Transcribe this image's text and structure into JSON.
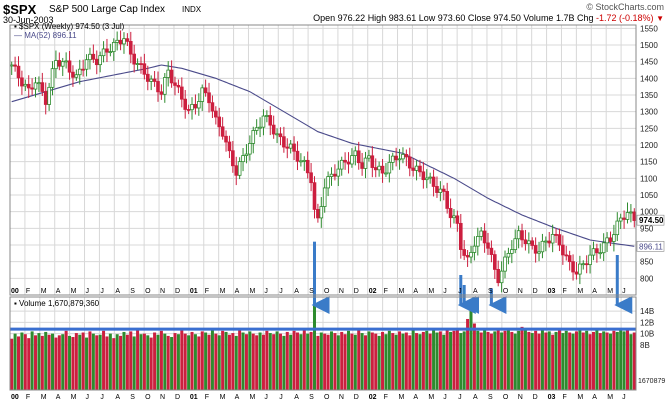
{
  "header": {
    "symbol": "$SPX",
    "description": "S&P 500 Large Cap Index",
    "exchange": "INDX",
    "date": "30-Jun-2003",
    "credit": "© StockCharts.com",
    "quote": {
      "open_label": "Open",
      "open": "976.22",
      "high_label": "High",
      "high": "983.61",
      "low_label": "Low",
      "low": "973.60",
      "close_label": "Close",
      "close": "974.50",
      "volume_label": "Volume",
      "volume": "1.7B",
      "chg_label": "Chg",
      "chg": "-1.72 (-0.18%)"
    }
  },
  "colors": {
    "up": "#2e8b2e",
    "down": "#cc1f3f",
    "ma": "#4a4a8a",
    "arrow": "#3a7bc8",
    "hline": "#3a6fd0",
    "grid": "#d8d8d8"
  },
  "chart_data": [
    {
      "type": "candlestick",
      "legend": [
        "$SPX (Weekly) 974.50 (3 Jul)",
        "MA(52) 896.11"
      ],
      "last_price_label": "974.50",
      "ma_value_label": "896.11",
      "ylim": [
        750,
        1560
      ],
      "y_ticks": [
        800,
        850,
        900,
        950,
        1000,
        1050,
        1100,
        1150,
        1200,
        1250,
        1300,
        1350,
        1400,
        1450,
        1500,
        1550
      ],
      "x_tick_labels": [
        "00",
        "F",
        "M",
        "A",
        "M",
        "J",
        "J",
        "A",
        "S",
        "O",
        "N",
        "D",
        "01",
        "F",
        "M",
        "A",
        "M",
        "J",
        "J",
        "A",
        "S",
        "O",
        "N",
        "D",
        "02",
        "F",
        "M",
        "A",
        "M",
        "J",
        "J",
        "A",
        "S",
        "O",
        "N",
        "D",
        "03",
        "F",
        "M",
        "A",
        "M",
        "J"
      ],
      "bold_x_ticks": [
        "00",
        "01",
        "02",
        "03"
      ],
      "close_path": [
        [
          0,
          1440
        ],
        [
          2,
          1405
        ],
        [
          5,
          1360
        ],
        [
          7,
          1395
        ],
        [
          10,
          1335
        ],
        [
          13,
          1455
        ],
        [
          16,
          1440
        ],
        [
          19,
          1400
        ],
        [
          22,
          1460
        ],
        [
          25,
          1455
        ],
        [
          28,
          1485
        ],
        [
          31,
          1505
        ],
        [
          33,
          1525
        ],
        [
          35,
          1470
        ],
        [
          38,
          1430
        ],
        [
          41,
          1390
        ],
        [
          44,
          1360
        ],
        [
          46,
          1420
        ],
        [
          48,
          1380
        ],
        [
          50,
          1340
        ],
        [
          52,
          1300
        ],
        [
          54,
          1320
        ],
        [
          56,
          1360
        ],
        [
          58,
          1340
        ],
        [
          60,
          1270
        ],
        [
          62,
          1240
        ],
        [
          64,
          1170
        ],
        [
          66,
          1120
        ],
        [
          68,
          1160
        ],
        [
          70,
          1210
        ],
        [
          72,
          1250
        ],
        [
          74,
          1285
        ],
        [
          76,
          1265
        ],
        [
          78,
          1225
        ],
        [
          80,
          1205
        ],
        [
          82,
          1190
        ],
        [
          84,
          1165
        ],
        [
          86,
          1140
        ],
        [
          88,
          1100
        ],
        [
          89,
          1000
        ],
        [
          90,
          970
        ],
        [
          92,
          1080
        ],
        [
          95,
          1120
        ],
        [
          98,
          1150
        ],
        [
          101,
          1170
        ],
        [
          103,
          1140
        ],
        [
          105,
          1160
        ],
        [
          107,
          1130
        ],
        [
          109,
          1115
        ],
        [
          111,
          1145
        ],
        [
          114,
          1170
        ],
        [
          116,
          1155
        ],
        [
          118,
          1130
        ],
        [
          121,
          1110
        ],
        [
          124,
          1080
        ],
        [
          127,
          1050
        ],
        [
          129,
          990
        ],
        [
          131,
          960
        ],
        [
          132,
          900
        ],
        [
          133,
          870
        ],
        [
          134,
          850
        ],
        [
          136,
          910
        ],
        [
          138,
          930
        ],
        [
          140,
          900
        ],
        [
          141,
          860
        ],
        [
          142,
          820
        ],
        [
          143,
          800
        ],
        [
          145,
          850
        ],
        [
          147,
          900
        ],
        [
          149,
          930
        ],
        [
          151,
          915
        ],
        [
          153,
          890
        ],
        [
          155,
          885
        ],
        [
          157,
          910
        ],
        [
          159,
          930
        ],
        [
          161,
          905
        ],
        [
          163,
          860
        ],
        [
          164,
          840
        ],
        [
          166,
          820
        ],
        [
          168,
          840
        ],
        [
          170,
          870
        ],
        [
          172,
          880
        ],
        [
          174,
          900
        ],
        [
          176,
          920
        ],
        [
          178,
          960
        ],
        [
          180,
          990
        ],
        [
          181,
          1000
        ],
        [
          182,
          985
        ],
        [
          183,
          974.5
        ]
      ],
      "ma52_path": [
        [
          0,
          1330
        ],
        [
          10,
          1360
        ],
        [
          20,
          1390
        ],
        [
          30,
          1410
        ],
        [
          40,
          1430
        ],
        [
          44,
          1440
        ],
        [
          50,
          1430
        ],
        [
          60,
          1400
        ],
        [
          70,
          1360
        ],
        [
          80,
          1300
        ],
        [
          85,
          1270
        ],
        [
          90,
          1240
        ],
        [
          100,
          1205
        ],
        [
          110,
          1185
        ],
        [
          115,
          1175
        ],
        [
          120,
          1150
        ],
        [
          130,
          1100
        ],
        [
          140,
          1040
        ],
        [
          150,
          990
        ],
        [
          160,
          950
        ],
        [
          170,
          915
        ],
        [
          183,
          896.11
        ]
      ]
    },
    {
      "type": "bar",
      "legend": [
        "Volume 1,670,879,360"
      ],
      "ylim": [
        0,
        1.65
      ],
      "y_ticks": [
        0.8,
        1.0,
        1.2,
        1.4
      ],
      "y_tick_labels": [
        "8B",
        "10B",
        "12B",
        "14B"
      ],
      "last_value_label": "1670879",
      "reference_level": 1.08,
      "values": [
        0.91,
        1.0,
        0.95,
        1.02,
        0.99,
        0.92,
        1.04,
        0.97,
        1.01,
        0.96,
        1.03,
        0.98,
        1.0,
        0.93,
        0.97,
        0.99,
        1.05,
        0.96,
        0.94,
        1.01,
        0.98,
        1.02,
        0.93,
        1.04,
        1.0,
        0.97,
        0.98,
        1.05,
        0.95,
        1.0,
        0.92,
        0.99,
        0.96,
        1.03,
        0.98,
        1.04,
        0.95,
        1.06,
        0.99,
        1.0,
        0.97,
        0.93,
        1.02,
        0.98,
        1.05,
        1.0,
        0.96,
        0.94,
        1.01,
        0.99,
        1.06,
        1.0,
        0.97,
        1.03,
        0.99,
        0.95,
        1.04,
        1.02,
        0.98,
        1.07,
        1.0,
        0.97,
        1.05,
        1.03,
        0.98,
        1.01,
        0.96,
        1.06,
        1.02,
        0.99,
        1.04,
        1.0,
        0.97,
        1.02,
        0.98,
        1.05,
        1.01,
        0.99,
        1.04,
        1.0,
        0.96,
        1.03,
        0.98,
        1.05,
        1.02,
        0.99,
        1.06,
        1.0,
        1.03,
        1.58,
        0.96,
        1.02,
        1.0,
        0.98,
        1.04,
        1.01,
        0.97,
        1.03,
        0.99,
        1.05,
        1.0,
        0.98,
        1.06,
        1.01,
        0.97,
        1.04,
        1.02,
        1.0,
        0.96,
        1.03,
        0.99,
        1.05,
        1.01,
        0.98,
        1.04,
        1.0,
        1.02,
        0.97,
        1.06,
        1.01,
        0.99,
        1.03,
        1.05,
        1.0,
        1.07,
        1.02,
        1.04,
        0.98,
        1.06,
        1.03,
        1.05,
        1.08,
        1.01,
        1.04,
        1.26,
        1.48,
        1.18,
        1.05,
        1.02,
        1.06,
        1.03,
        1.0,
        1.04,
        1.08,
        1.02,
        1.05,
        1.1,
        1.03,
        1.0,
        1.05,
        1.12,
        1.07,
        1.03,
        1.01,
        1.05,
        1.0,
        1.06,
        1.02,
        1.04,
        0.98,
        1.03,
        1.07,
        1.01,
        1.05,
        1.02,
        1.0,
        1.04,
        1.08,
        1.02,
        1.05,
        0.99,
        1.03,
        1.06,
        1.01,
        1.04,
        1.02,
        1.0,
        1.05,
        1.03,
        1.1,
        1.04,
        1.07,
        0.99,
        1.02
      ],
      "up_down": "DUDUDDUDUDUDUDDUDUDDUDUDUDUDDUDUDUDDUDUDUDDUDUDUDUDDUDUDDUDUDUDUDDUDUDUDDUDDUDUDUDUDDUDUDUDUDDUDUDDUDUDUDUDDUDUUDUDUDDUDUDUDUUDUDUDDUUDUDUDUDDUDUDUDUUDUDUDDUDUDUDUUDUDUDUDDUDUDUDUUUDUDUDUDU"
    }
  ],
  "annotations": {
    "arrows_at_week": [
      89,
      132,
      133,
      141,
      178
    ],
    "arrows_description_visible": false
  }
}
